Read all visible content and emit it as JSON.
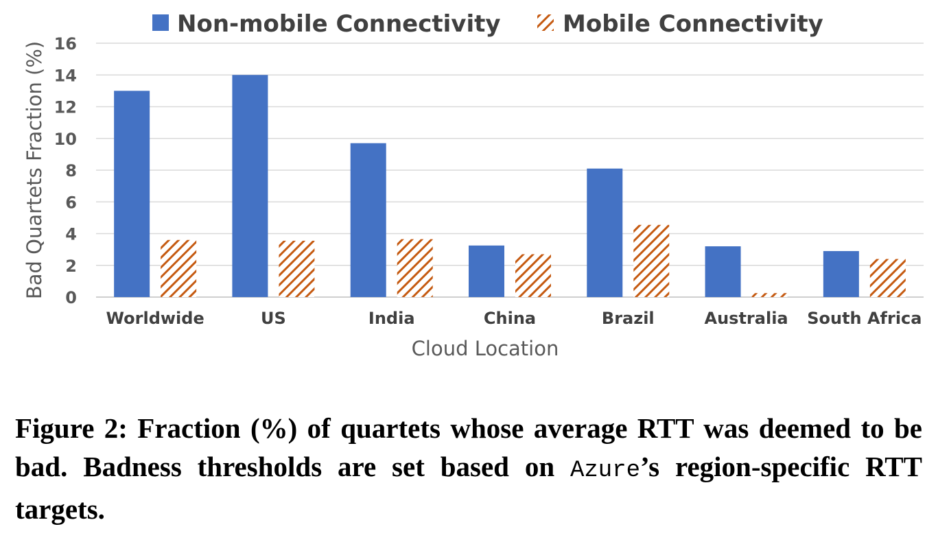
{
  "chart_data": {
    "type": "bar",
    "categories": [
      "Worldwide",
      "US",
      "India",
      "China",
      "Brazil",
      "Australia",
      "South Africa"
    ],
    "series": [
      {
        "name": "Non-mobile Connectivity",
        "values": [
          13.0,
          14.0,
          9.7,
          3.25,
          8.1,
          3.2,
          2.9
        ],
        "color": "#4472c4",
        "pattern": "solid"
      },
      {
        "name": "Mobile Connectivity",
        "values": [
          3.6,
          3.55,
          3.65,
          2.7,
          4.55,
          0.25,
          2.4
        ],
        "color": "#c55a11",
        "pattern": "diagonal-hatch"
      }
    ],
    "xlabel": "Cloud Location",
    "ylabel": "Bad Quartets Fraction (%)",
    "ylim": [
      0,
      16
    ],
    "yticks": [
      "0",
      "2",
      "4",
      "6",
      "8",
      "10",
      "12",
      "14",
      "16"
    ],
    "grid": true,
    "legend_position": "top-center"
  },
  "caption": {
    "before": "Figure 2: Fraction (%) of quartets whose average RTT was deemed to be bad. Badness thresholds are set based on ",
    "code": "Azure",
    "after": "’s region-specific RTT targets."
  }
}
